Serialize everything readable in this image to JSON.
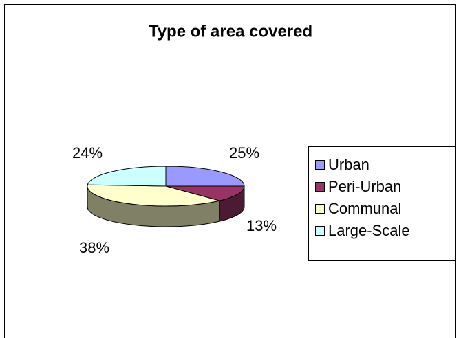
{
  "chart_data": {
    "type": "pie3d",
    "title": "Type of area covered",
    "categories": [
      "Urban",
      "Peri-Urban",
      "Communal",
      "Large-Scale"
    ],
    "values": [
      25,
      13,
      38,
      24
    ],
    "value_labels": [
      "25%",
      "13%",
      "38%",
      "24%"
    ],
    "colors": [
      "#9999ff",
      "#993366",
      "#ffffcc",
      "#ccffff"
    ],
    "legend": "right"
  }
}
